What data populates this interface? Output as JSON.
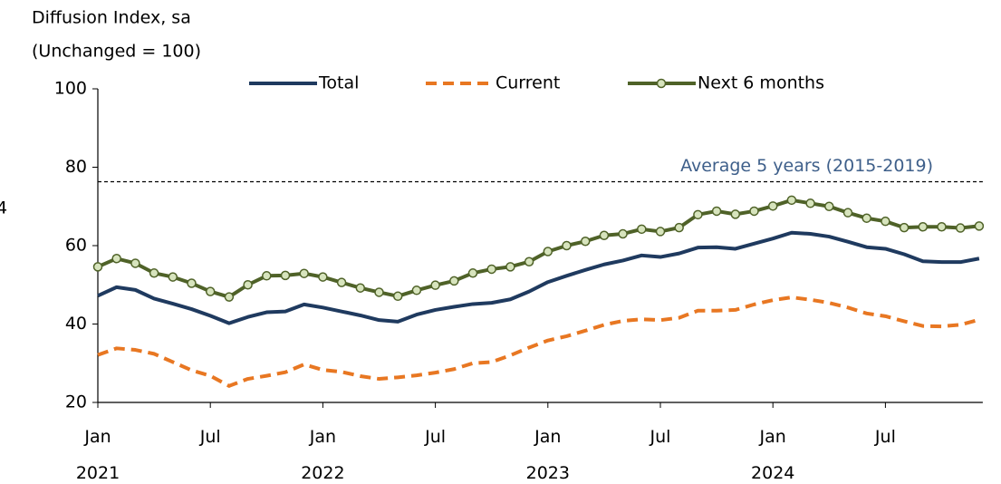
{
  "chart_data": {
    "type": "line",
    "y_label_lines": [
      "Diffusion Index, sa",
      "(Unchanged = 100)"
    ],
    "cropped_text": "4",
    "categories": [
      "Jan 2021",
      null,
      null,
      null,
      null,
      null,
      "Jul",
      null,
      null,
      null,
      null,
      null,
      "Jan 2022",
      null,
      null,
      null,
      null,
      null,
      "Jul",
      null,
      null,
      null,
      null,
      null,
      "Jan 2023",
      null,
      null,
      null,
      null,
      null,
      "Jul",
      null,
      null,
      null,
      null,
      null,
      "Jan 2024",
      null,
      null,
      null,
      null,
      null,
      "Jul",
      null,
      null,
      null,
      null,
      null
    ],
    "series": [
      {
        "name": "Total",
        "color": "#1f3a5f",
        "style": "solid",
        "markers": false,
        "values": [
          47.2,
          49.4,
          48.7,
          46.5,
          45.2,
          43.8,
          42.1,
          40.2,
          41.8,
          43.0,
          43.2,
          45.0,
          44.2,
          43.2,
          42.2,
          41.0,
          40.6,
          42.4,
          43.6,
          44.4,
          45.1,
          45.4,
          46.3,
          48.3,
          50.7,
          52.3,
          53.8,
          55.2,
          56.2,
          57.5,
          57.1,
          58.0,
          59.5,
          59.6,
          59.2,
          60.5,
          61.8,
          63.3,
          63.0,
          62.3,
          61.0,
          59.6,
          59.2,
          57.8,
          56.0,
          55.8,
          55.8,
          56.7
        ]
      },
      {
        "name": "Current",
        "color": "#e87722",
        "style": "dashed",
        "markers": false,
        "values": [
          32.1,
          33.8,
          33.4,
          32.4,
          30.3,
          28.2,
          26.8,
          24.2,
          26.0,
          26.8,
          27.7,
          29.7,
          28.3,
          27.8,
          26.7,
          26.0,
          26.4,
          26.9,
          27.6,
          28.5,
          30.0,
          30.3,
          32.0,
          34.0,
          35.8,
          36.9,
          38.3,
          39.8,
          40.8,
          41.2,
          41.0,
          41.6,
          43.4,
          43.4,
          43.6,
          45.0,
          46.1,
          46.8,
          46.2,
          45.4,
          44.2,
          42.7,
          42.0,
          40.7,
          39.5,
          39.4,
          39.8,
          41.1
        ]
      },
      {
        "name": "Next 6 months",
        "color": "#4f6228",
        "style": "solid",
        "markers": true,
        "marker_fill": "#d7e4bd",
        "values": [
          54.6,
          56.7,
          55.5,
          53.0,
          52.0,
          50.4,
          48.3,
          46.9,
          50.0,
          52.3,
          52.4,
          52.9,
          52.0,
          50.6,
          49.2,
          48.1,
          47.1,
          48.6,
          49.9,
          51.0,
          53.0,
          54.0,
          54.6,
          55.9,
          58.5,
          60.0,
          61.1,
          62.6,
          63.0,
          64.2,
          63.6,
          64.6,
          67.9,
          68.8,
          68.0,
          68.8,
          70.1,
          71.6,
          70.8,
          70.0,
          68.4,
          67.0,
          66.2,
          64.6,
          64.8,
          64.8,
          64.5,
          65.0
        ]
      }
    ],
    "reference_line": {
      "value": 76.3,
      "label": "Average 5 years (2015-2019)",
      "color": "#000000",
      "label_color": "#3e5f8a"
    },
    "ylim": [
      20,
      100
    ],
    "yticks": [
      20,
      40,
      60,
      80,
      100
    ],
    "grid": false
  }
}
